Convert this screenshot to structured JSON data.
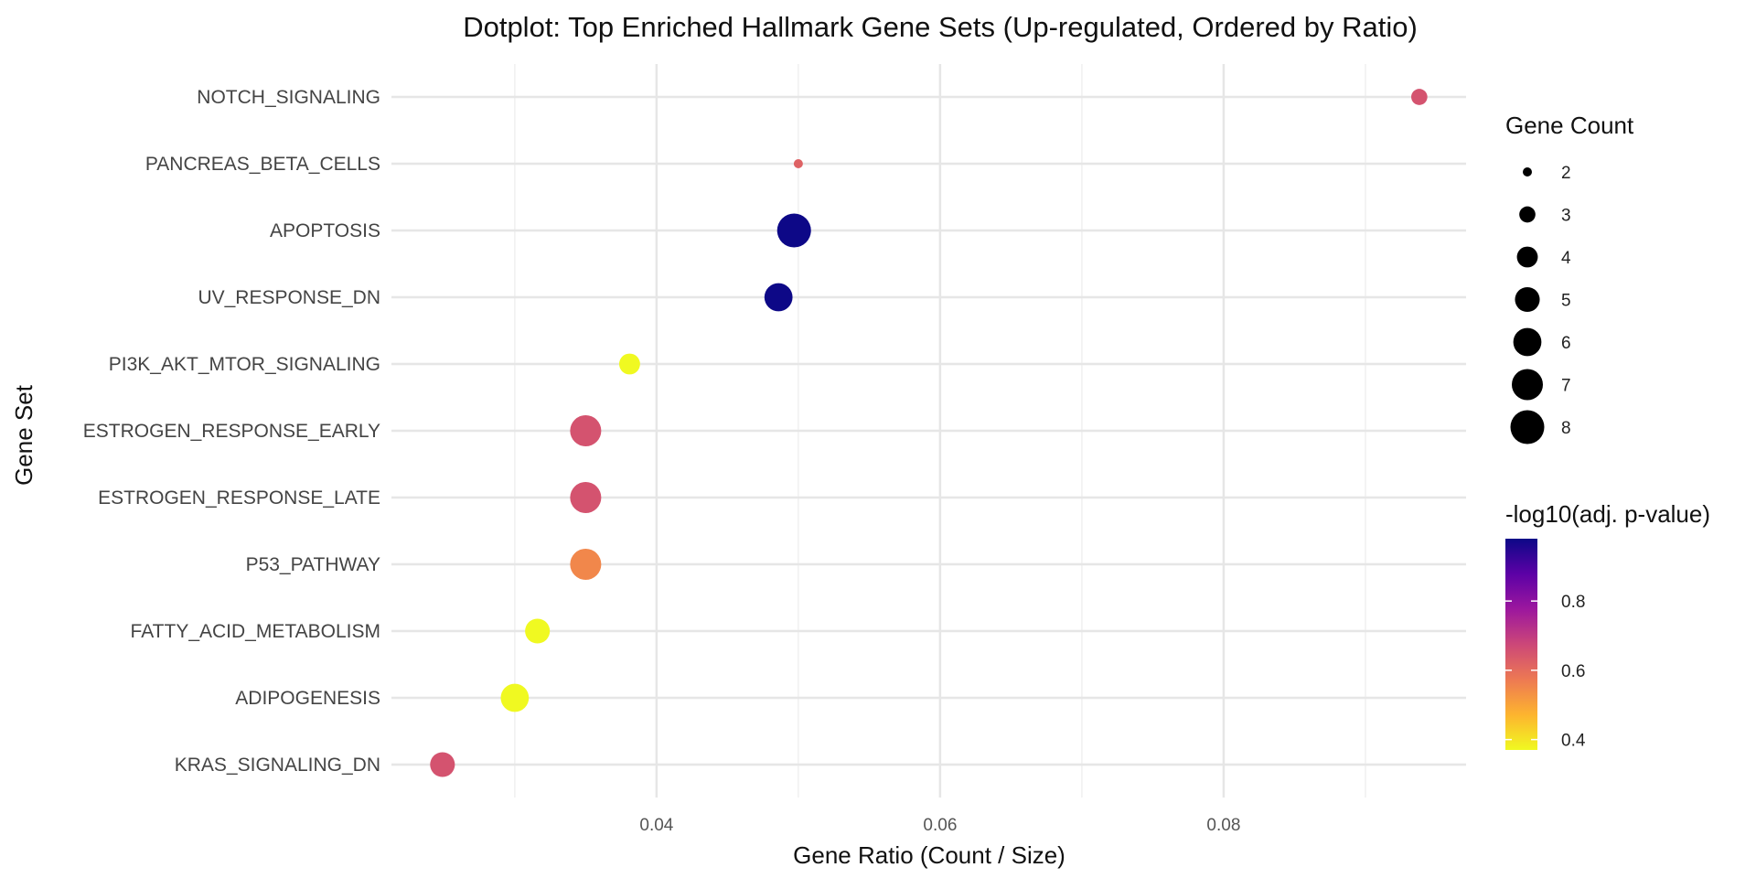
{
  "chart_data": {
    "type": "scatter",
    "title": "Dotplot: Top Enriched Hallmark Gene Sets (Up-regulated, Ordered by Ratio)",
    "xlabel": "Gene Ratio (Count / Size)",
    "ylabel": "Gene Set",
    "xlim": [
      0.0213,
      0.0971
    ],
    "x_ticks": [
      0.04,
      0.06,
      0.08
    ],
    "x_tick_labels": [
      "0.04",
      "0.06",
      "0.08"
    ],
    "x_minor_ticks": [
      0.03,
      0.05,
      0.07,
      0.09
    ],
    "grid": true,
    "categories": [
      "NOTCH_SIGNALING",
      "PANCREAS_BETA_CELLS",
      "APOPTOSIS",
      "UV_RESPONSE_DN",
      "PI3K_AKT_MTOR_SIGNALING",
      "ESTROGEN_RESPONSE_EARLY",
      "ESTROGEN_RESPONSE_LATE",
      "P53_PATHWAY",
      "FATTY_ACID_METABOLISM",
      "ADIPOGENESIS",
      "KRAS_SIGNALING_DN"
    ],
    "points": [
      {
        "gene_set": "NOTCH_SIGNALING",
        "gene_ratio": 0.0938,
        "count": 3,
        "neg_log10_padj": 0.65
      },
      {
        "gene_set": "PANCREAS_BETA_CELLS",
        "gene_ratio": 0.05,
        "count": 2,
        "neg_log10_padj": 0.62
      },
      {
        "gene_set": "APOPTOSIS",
        "gene_ratio": 0.0497,
        "count": 8,
        "neg_log10_padj": 0.98
      },
      {
        "gene_set": "UV_RESPONSE_DN",
        "gene_ratio": 0.0486,
        "count": 6,
        "neg_log10_padj": 0.98
      },
      {
        "gene_set": "PI3K_AKT_MTOR_SIGNALING",
        "gene_ratio": 0.0381,
        "count": 4,
        "neg_log10_padj": 0.37
      },
      {
        "gene_set": "ESTROGEN_RESPONSE_EARLY",
        "gene_ratio": 0.035,
        "count": 7,
        "neg_log10_padj": 0.65
      },
      {
        "gene_set": "ESTROGEN_RESPONSE_LATE",
        "gene_ratio": 0.035,
        "count": 7,
        "neg_log10_padj": 0.65
      },
      {
        "gene_set": "P53_PATHWAY",
        "gene_ratio": 0.035,
        "count": 7,
        "neg_log10_padj": 0.55
      },
      {
        "gene_set": "FATTY_ACID_METABOLISM",
        "gene_ratio": 0.0316,
        "count": 5,
        "neg_log10_padj": 0.37
      },
      {
        "gene_set": "ADIPOGENESIS",
        "gene_ratio": 0.03,
        "count": 6,
        "neg_log10_padj": 0.37
      },
      {
        "gene_set": "KRAS_SIGNALING_DN",
        "gene_ratio": 0.0249,
        "count": 5,
        "neg_log10_padj": 0.65
      }
    ],
    "size_legend": {
      "title": "Gene Count",
      "values": [
        2,
        3,
        4,
        5,
        6,
        7,
        8
      ]
    },
    "color_legend": {
      "title": "-log10(adj. p-value)",
      "range": [
        0.37,
        0.98
      ],
      "ticks": [
        0.4,
        0.6,
        0.8
      ],
      "tick_labels": [
        "0.4",
        "0.6",
        "0.8"
      ],
      "colors": [
        "#F0F921",
        "#FDB42F",
        "#ED7953",
        "#CC4778",
        "#9C179E",
        "#5C01A6",
        "#0D0887"
      ]
    },
    "legend_position": "right"
  }
}
